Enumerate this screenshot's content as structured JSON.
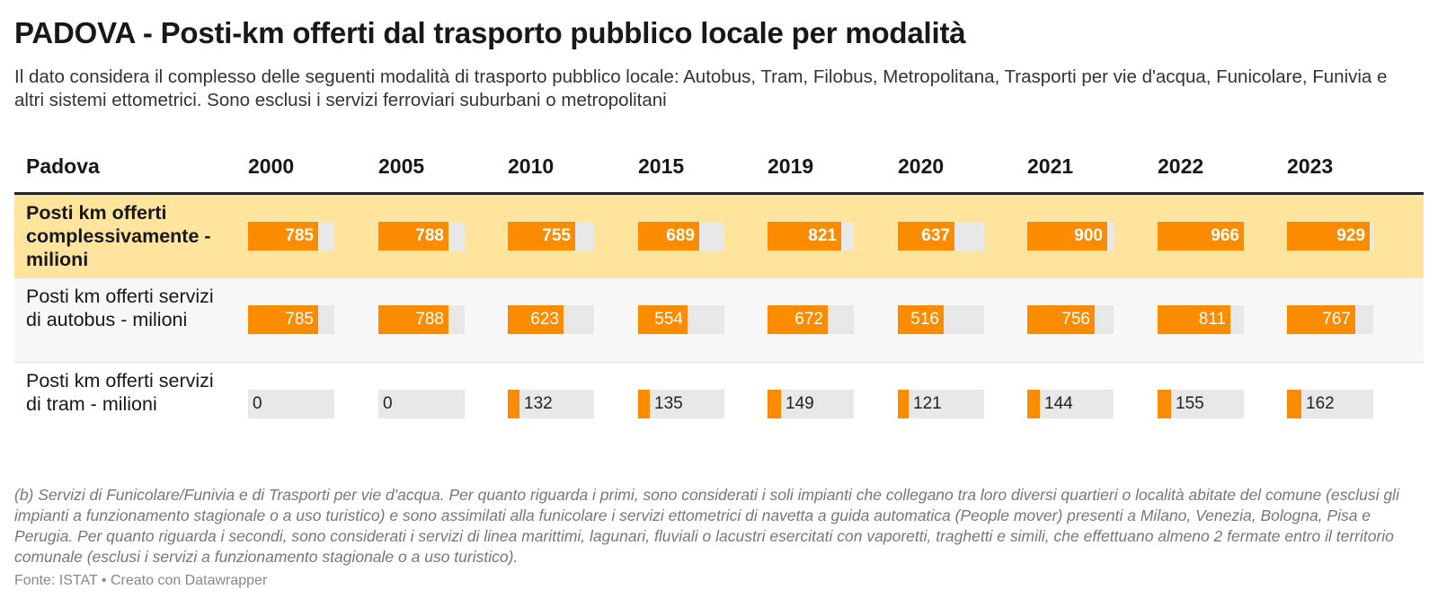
{
  "title": "PADOVA - Posti-km offerti dal trasporto pubblico locale per modalità",
  "subtitle": "Il dato considera il complesso delle seguenti modalità di trasporto pubblico locale: Autobus, Tram, Filobus, Metropolitana, Trasporti per vie d'acqua, Funicolare, Funivia e altri sistemi ettometrici. Sono esclusi i servizi ferroviari suburbani o metropolitani",
  "table_header": "Padova",
  "footnote": "(b) Servizi di Funicolare/Funivia e di Trasporti per vie d'acqua. Per quanto riguarda i primi, sono considerati i soli impianti che collegano tra loro diversi quartieri o località abitate del comune (esclusi gli impianti a funzionamento stagionale o a uso turistico) e sono assimilati alla funicolare i servizi ettometrici di navetta a guida automatica (People mover) presenti a Milano, Venezia, Bologna, Pisa e Perugia. Per quanto riguarda i secondi, sono considerati i servizi di linea marittimi, lagunari, fluviali o lacustri esercitati con vaporetti, traghetti e simili, che effettuano almeno 2 fermate entro il territorio comunale (esclusi i servizi a funzionamento stagionale o a uso turistico).",
  "source": "Fonte: ISTAT • Creato con Datawrapper",
  "colors": {
    "bar": "#fb8c00",
    "track": "#e8e8e8",
    "highlight_row": "#fee49d",
    "alt_row": "#f7f7f7"
  },
  "chart_data": {
    "type": "table",
    "columns": [
      "2000",
      "2005",
      "2010",
      "2015",
      "2019",
      "2020",
      "2021",
      "2022",
      "2023"
    ],
    "rows": [
      {
        "label": "Posti km offerti complessivamente -milioni",
        "values": [
          785,
          788,
          755,
          689,
          821,
          637,
          900,
          966,
          929
        ],
        "highlight": true
      },
      {
        "label": "Posti km offerti servizi di autobus - milioni",
        "values": [
          785,
          788,
          623,
          554,
          672,
          516,
          756,
          811,
          767
        ]
      },
      {
        "label": "Posti km offerti servizi di tram - milioni",
        "values": [
          0,
          0,
          132,
          135,
          149,
          121,
          144,
          155,
          162
        ]
      }
    ]
  }
}
